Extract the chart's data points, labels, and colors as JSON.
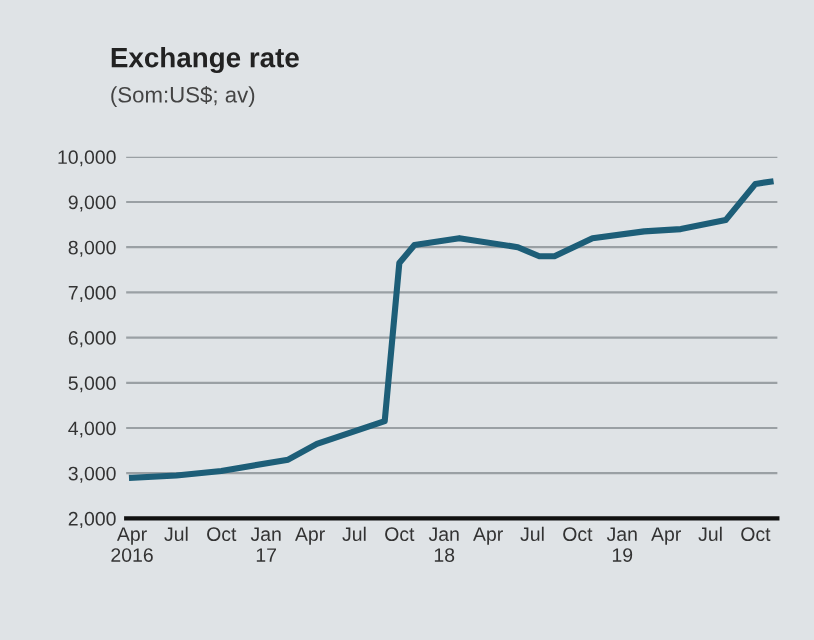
{
  "chart_data": {
    "type": "line",
    "title": "Exchange rate",
    "subtitle": "(Som:US$; av)",
    "series": [
      {
        "color": "#1d5e78",
        "x": [
          "2016-04-01",
          "2016-07-01",
          "2016-10-01",
          "2017-02-15",
          "2017-04-15",
          "2017-09-01",
          "2017-10-01",
          "2017-11-01",
          "2018-02-01",
          "2018-06-01",
          "2018-07-15",
          "2018-08-15",
          "2018-11-01",
          "2019-02-15",
          "2019-05-01",
          "2019-08-01",
          "2019-10-01",
          "2019-11-01"
        ],
        "values": [
          2900,
          2950,
          3050,
          3300,
          3650,
          4150,
          7650,
          8050,
          8200,
          8000,
          7800,
          7800,
          8200,
          8350,
          8400,
          8600,
          9400,
          9450
        ]
      }
    ],
    "xlim": [
      "2016-03-20",
      "2019-11-15"
    ],
    "xticks": [
      {
        "value": "2016-04-01",
        "label": "Apr\n2016"
      },
      {
        "value": "2016-07-01",
        "label": "Jul"
      },
      {
        "value": "2016-10-01",
        "label": "Oct"
      },
      {
        "value": "2017-01-01",
        "label": "Jan\n17"
      },
      {
        "value": "2017-04-01",
        "label": "Apr"
      },
      {
        "value": "2017-07-01",
        "label": "Jul"
      },
      {
        "value": "2017-10-01",
        "label": "Oct"
      },
      {
        "value": "2018-01-01",
        "label": "Jan\n18"
      },
      {
        "value": "2018-04-01",
        "label": "Apr"
      },
      {
        "value": "2018-07-01",
        "label": "Jul"
      },
      {
        "value": "2018-10-01",
        "label": "Oct"
      },
      {
        "value": "2019-01-01",
        "label": "Jan\n19"
      },
      {
        "value": "2019-04-01",
        "label": "Apr"
      },
      {
        "value": "2019-07-01",
        "label": "Jul"
      },
      {
        "value": "2019-10-01",
        "label": "Oct"
      }
    ],
    "ylim": [
      2000,
      10000
    ],
    "yticks": [
      {
        "value": 2000,
        "label": "2,000"
      },
      {
        "value": 3000,
        "label": "3,000"
      },
      {
        "value": 4000,
        "label": "4,000"
      },
      {
        "value": 5000,
        "label": "5,000"
      },
      {
        "value": 6000,
        "label": "6,000"
      },
      {
        "value": 7000,
        "label": "7,000"
      },
      {
        "value": 8000,
        "label": "8,000"
      },
      {
        "value": 9000,
        "label": "9,000"
      },
      {
        "value": 10000,
        "label": "10,000"
      }
    ],
    "grid": "y",
    "legend": false,
    "marker": "none",
    "line_style": "solid"
  }
}
